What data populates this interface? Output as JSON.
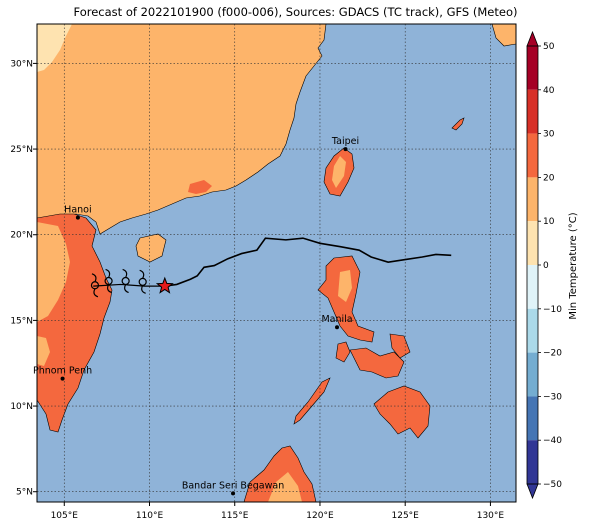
{
  "title": "Forecast of 2022101900 (f000-006), Sources: GDACS (TC track), GFS (Meteo)",
  "colors": {
    "sea": "#8fb3d8",
    "land_15_20": "#fdb46a",
    "land_10_15": "#fee3b0",
    "land_20_25": "#f4683e",
    "track": "#000000",
    "star": "#e41a1c"
  },
  "map": {
    "lon_ticks": [
      "105°E",
      "110°E",
      "115°E",
      "120°E",
      "125°E",
      "130°E"
    ],
    "lat_ticks": [
      "30°N",
      "25°N",
      "20°N",
      "15°N",
      "10°N",
      "5°N"
    ],
    "lon_values": [
      105,
      110,
      115,
      120,
      125,
      130
    ],
    "lat_values": [
      30,
      25,
      20,
      15,
      10,
      5
    ],
    "lon_range": [
      103.4,
      131.5
    ],
    "lat_range": [
      4.4,
      32.3
    ],
    "grid": true
  },
  "cities": [
    {
      "name": "Taipei",
      "lon": 121.5,
      "lat": 25.0
    },
    {
      "name": "Hanoi",
      "lon": 105.8,
      "lat": 21.0
    },
    {
      "name": "Manila",
      "lon": 121.0,
      "lat": 14.6
    },
    {
      "name": "Phnom Penh",
      "lon": 104.9,
      "lat": 11.6
    },
    {
      "name": "Bandar Seri Begawan",
      "lon": 114.9,
      "lat": 4.9
    }
  ],
  "track": {
    "icon": "typhoon-symbol",
    "current_position_icon": "star-icon",
    "current_position": {
      "lon": 110.9,
      "lat": 17.0
    },
    "points": [
      [
        110.9,
        17.0
      ],
      [
        111.6,
        17.1
      ],
      [
        112.4,
        17.4
      ],
      [
        112.8,
        17.6
      ],
      [
        113.2,
        18.1
      ],
      [
        113.8,
        18.2
      ],
      [
        114.6,
        18.6
      ],
      [
        115.4,
        18.9
      ],
      [
        116.3,
        19.1
      ],
      [
        116.8,
        19.8
      ],
      [
        118.0,
        19.7
      ],
      [
        119.0,
        19.8
      ],
      [
        120.0,
        19.5
      ],
      [
        121.2,
        19.3
      ],
      [
        122.3,
        19.1
      ],
      [
        123.0,
        18.7
      ],
      [
        124.0,
        18.4
      ],
      [
        125.0,
        18.55
      ],
      [
        126.0,
        18.7
      ],
      [
        126.8,
        18.85
      ],
      [
        127.7,
        18.8
      ]
    ],
    "past": [
      [
        110.9,
        17.0
      ],
      [
        109.7,
        17.0
      ],
      [
        108.3,
        17.1
      ],
      [
        106.7,
        17.0
      ]
    ],
    "storm_symbols": [
      [
        109.6,
        17.25
      ],
      [
        108.6,
        17.3
      ],
      [
        107.6,
        17.3
      ],
      [
        106.8,
        17.05
      ]
    ]
  },
  "colorbar": {
    "label": "Min Temperature (°C)",
    "ticks": [
      "50",
      "40",
      "30",
      "20",
      "10",
      "0",
      "−10",
      "−20",
      "−30",
      "−40",
      "−50"
    ],
    "bands": [
      {
        "from": 40,
        "to": 50,
        "color": "#a50026"
      },
      {
        "from": 30,
        "to": 40,
        "color": "#d73027"
      },
      {
        "from": 20,
        "to": 30,
        "color": "#f4683e"
      },
      {
        "from": 10,
        "to": 20,
        "color": "#fdb46a"
      },
      {
        "from": 0,
        "to": 10,
        "color": "#fee3b0"
      },
      {
        "from": -10,
        "to": 0,
        "color": "#e0f3f8"
      },
      {
        "from": -20,
        "to": -10,
        "color": "#abd9e9"
      },
      {
        "from": -30,
        "to": -20,
        "color": "#74add1"
      },
      {
        "from": -40,
        "to": -30,
        "color": "#4575b4"
      },
      {
        "from": -50,
        "to": -40,
        "color": "#313695"
      }
    ],
    "range": [
      -50,
      50
    ]
  }
}
